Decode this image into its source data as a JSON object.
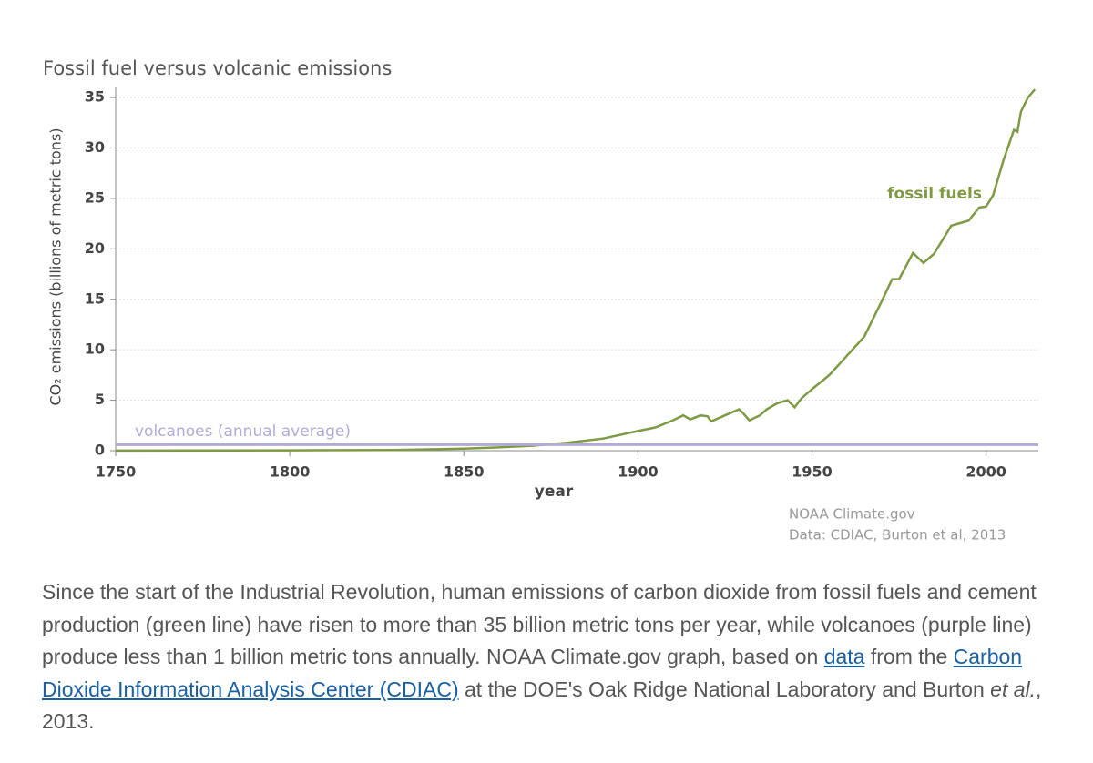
{
  "chart_data": {
    "type": "line",
    "title": "Fossil fuel versus volcanic emissions",
    "xlabel": "year",
    "ylabel": "CO₂ emissions (billions of metric tons)",
    "xlim": [
      1750,
      2015
    ],
    "xticks": [
      1750,
      1800,
      1850,
      1900,
      1950,
      2000
    ],
    "ylim": [
      0,
      36
    ],
    "yticks": [
      0,
      5,
      10,
      15,
      20,
      25,
      30,
      35
    ],
    "grid": true,
    "series": [
      {
        "name": "fossil fuels",
        "color": "#7f9a45",
        "x": [
          1750,
          1800,
          1830,
          1850,
          1860,
          1870,
          1880,
          1890,
          1900,
          1905,
          1910,
          1913,
          1915,
          1918,
          1920,
          1921,
          1925,
          1929,
          1930,
          1932,
          1935,
          1937,
          1940,
          1943,
          1945,
          1947,
          1950,
          1955,
          1960,
          1965,
          1970,
          1973,
          1975,
          1979,
          1982,
          1985,
          1990,
          1992,
          1995,
          1998,
          2000,
          2002,
          2005,
          2008,
          2009,
          2010,
          2012,
          2014
        ],
        "values": [
          0.01,
          0.03,
          0.07,
          0.2,
          0.33,
          0.5,
          0.8,
          1.2,
          1.95,
          2.3,
          3.0,
          3.5,
          3.1,
          3.5,
          3.4,
          2.9,
          3.5,
          4.1,
          3.8,
          3.0,
          3.5,
          4.1,
          4.7,
          5.0,
          4.3,
          5.2,
          6.1,
          7.5,
          9.4,
          11.3,
          14.8,
          17.0,
          17.0,
          19.6,
          18.6,
          19.5,
          22.3,
          22.5,
          22.8,
          24.1,
          24.2,
          25.3,
          28.8,
          31.8,
          31.6,
          33.6,
          35.0,
          35.8
        ]
      },
      {
        "name": "volcanoes (annual average)",
        "color": "#b3aad6",
        "x": [
          1750,
          2015
        ],
        "values": [
          0.6,
          0.6
        ]
      }
    ],
    "credits": [
      "NOAA Climate.gov",
      "Data: CDIAC, Burton et al, 2013"
    ]
  },
  "caption": [
    "Since the start of the Industrial Revolution, human emissions of carbon dioxide from fossil fuels and cement production (green line) have risen to more than 35 billion metric tons per year, while volcanoes (purple line) produce less than 1 billion metric tons annually. NOAA Climate.gov graph, based on ",
    "data",
    " from the ",
    "Carbon Dioxide Information Analysis Center (CDIAC)",
    " at the DOE's Oak Ridge National Laboratory and Burton ",
    "et al.",
    ", 2013."
  ]
}
